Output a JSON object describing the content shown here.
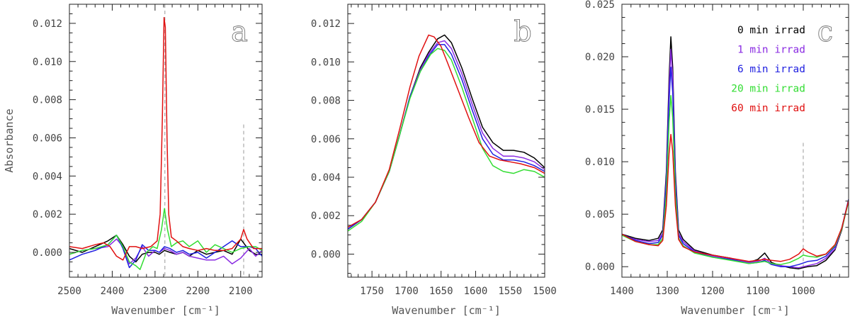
{
  "colors": {
    "0_min": "#000000",
    "1_min": "#8a2be2",
    "6_min": "#1f1fe0",
    "20_min": "#33dd33",
    "60_min": "#e01010"
  },
  "chart_data": [
    {
      "type": "line",
      "panel_letter": "a",
      "xlabel": "Wavenumber [cm⁻¹]",
      "ylabel": "Absorbance",
      "xlim": [
        2500,
        2050
      ],
      "ylim": [
        -0.0013,
        0.013
      ],
      "xticks": [
        2500,
        2400,
        2300,
        2200,
        2100
      ],
      "yticks": [
        0.0,
        0.002,
        0.004,
        0.006,
        0.008,
        0.01,
        0.012
      ],
      "ytick_labels": [
        "0.000",
        "0.002",
        "0.004",
        "0.006",
        "0.008",
        "0.010",
        "0.012"
      ],
      "vlines": [
        2277,
        2093
      ],
      "series": [
        {
          "color_key": "0_min",
          "x": [
            2500,
            2470,
            2440,
            2410,
            2390,
            2375,
            2360,
            2345,
            2330,
            2315,
            2300,
            2290,
            2278,
            2265,
            2250,
            2235,
            2220,
            2200,
            2180,
            2160,
            2140,
            2120,
            2100,
            2080,
            2065,
            2050
          ],
          "y": [
            0.0002,
            0.0,
            0.0003,
            0.0006,
            0.0009,
            0.0004,
            -0.0002,
            -0.0005,
            -0.0001,
            0.0,
            0.0,
            -0.0001,
            0.0001,
            0.0,
            -0.0001,
            0.0,
            -0.0002,
            0.0001,
            -0.0001,
            0.0,
            0.0001,
            -0.0001,
            0.0007,
            0.0001,
            -0.0001,
            -0.0001
          ]
        },
        {
          "color_key": "1_min",
          "x": [
            2500,
            2470,
            2440,
            2410,
            2390,
            2375,
            2360,
            2345,
            2330,
            2315,
            2300,
            2290,
            2278,
            2265,
            2250,
            2235,
            2220,
            2200,
            2180,
            2160,
            2140,
            2120,
            2100,
            2080,
            2065,
            2050
          ],
          "y": [
            -0.0001,
            0.0001,
            0.0002,
            0.0003,
            0.0007,
            0.0003,
            -0.0006,
            -0.0003,
            0.0003,
            -0.0002,
            0.0001,
            0.0,
            0.0002,
            0.0001,
            -0.0001,
            0.0,
            -0.0002,
            -0.0003,
            -0.0004,
            -0.0004,
            -0.0002,
            -0.0006,
            -0.0003,
            0.0002,
            -0.0002,
            0.0001
          ]
        },
        {
          "color_key": "6_min",
          "x": [
            2500,
            2470,
            2440,
            2410,
            2390,
            2375,
            2360,
            2345,
            2330,
            2315,
            2300,
            2290,
            2278,
            2265,
            2250,
            2235,
            2220,
            2200,
            2180,
            2160,
            2140,
            2120,
            2100,
            2080,
            2065,
            2050
          ],
          "y": [
            -0.0004,
            -0.0001,
            0.0001,
            0.0004,
            0.0009,
            0.0002,
            -0.0008,
            -0.0004,
            0.0004,
            0.0001,
            0.0001,
            0.0,
            0.0003,
            0.0002,
            0.0,
            0.0001,
            -0.0001,
            0.0,
            -0.0003,
            0.0,
            0.0003,
            0.0006,
            0.0003,
            0.0003,
            0.0002,
            -0.0002
          ]
        },
        {
          "color_key": "20_min",
          "x": [
            2500,
            2470,
            2440,
            2410,
            2390,
            2375,
            2360,
            2345,
            2335,
            2320,
            2305,
            2295,
            2285,
            2278,
            2271,
            2262,
            2250,
            2235,
            2220,
            2200,
            2180,
            2160,
            2140,
            2120,
            2100,
            2080,
            2065,
            2050
          ],
          "y": [
            -0.0001,
            0.0001,
            0.0002,
            0.0004,
            0.0009,
            0.0003,
            -0.0005,
            -0.0007,
            -0.0009,
            0.0,
            0.0003,
            0.0002,
            0.0012,
            0.0023,
            0.0012,
            0.0003,
            0.0005,
            0.0006,
            0.0003,
            0.0006,
            0.0,
            0.0004,
            0.0002,
            0.0,
            0.0002,
            0.0003,
            0.0003,
            0.0001
          ]
        },
        {
          "color_key": "60_min",
          "x": [
            2500,
            2470,
            2440,
            2420,
            2405,
            2390,
            2375,
            2360,
            2345,
            2330,
            2310,
            2295,
            2288,
            2283,
            2279,
            2276,
            2272,
            2268,
            2262,
            2250,
            2235,
            2220,
            2200,
            2180,
            2160,
            2140,
            2120,
            2100,
            2093,
            2085,
            2070,
            2050
          ],
          "y": [
            0.0003,
            0.0002,
            0.0004,
            0.0005,
            0.0003,
            -0.0002,
            -0.0004,
            0.0003,
            0.0003,
            0.0002,
            0.0003,
            0.0006,
            0.002,
            0.007,
            0.0123,
            0.0118,
            0.006,
            0.002,
            0.0008,
            0.0006,
            0.0003,
            0.0002,
            0.0001,
            0.0002,
            0.0001,
            0.0001,
            0.0002,
            0.0007,
            0.0012,
            0.0007,
            0.0002,
            0.0002
          ]
        }
      ]
    },
    {
      "type": "line",
      "panel_letter": "b",
      "xlabel": "Wavenumber [cm⁻¹]",
      "xlim": [
        1785,
        1500
      ],
      "ylim": [
        -0.0012,
        0.013
      ],
      "xticks": [
        1750,
        1700,
        1650,
        1600,
        1550,
        1500
      ],
      "yticks": [
        0.0,
        0.002,
        0.004,
        0.006,
        0.008,
        0.01,
        0.012
      ],
      "ytick_labels": [
        "0.000",
        "0.002",
        "0.004",
        "0.006",
        "0.008",
        "0.010",
        "0.012"
      ],
      "series": [
        {
          "color_key": "0_min",
          "x": [
            1785,
            1765,
            1745,
            1725,
            1710,
            1695,
            1680,
            1668,
            1655,
            1645,
            1635,
            1620,
            1605,
            1590,
            1575,
            1560,
            1545,
            1530,
            1515,
            1500
          ],
          "y": [
            0.0013,
            0.0018,
            0.0027,
            0.0043,
            0.0062,
            0.0082,
            0.0097,
            0.0105,
            0.0112,
            0.0114,
            0.011,
            0.0097,
            0.0081,
            0.0066,
            0.0058,
            0.0054,
            0.0054,
            0.0053,
            0.005,
            0.0045
          ]
        },
        {
          "color_key": "1_min",
          "x": [
            1785,
            1765,
            1745,
            1725,
            1710,
            1695,
            1680,
            1668,
            1655,
            1645,
            1635,
            1620,
            1605,
            1590,
            1575,
            1560,
            1545,
            1530,
            1515,
            1500
          ],
          "y": [
            0.0013,
            0.0018,
            0.0027,
            0.0043,
            0.0062,
            0.0082,
            0.0096,
            0.0104,
            0.011,
            0.0111,
            0.0107,
            0.0094,
            0.0078,
            0.0063,
            0.0055,
            0.0051,
            0.0051,
            0.005,
            0.0048,
            0.0044
          ]
        },
        {
          "color_key": "6_min",
          "x": [
            1785,
            1765,
            1745,
            1725,
            1710,
            1695,
            1680,
            1668,
            1655,
            1645,
            1635,
            1620,
            1605,
            1590,
            1575,
            1560,
            1545,
            1530,
            1515,
            1500
          ],
          "y": [
            0.0013,
            0.0018,
            0.0027,
            0.0043,
            0.0062,
            0.0082,
            0.0095,
            0.0103,
            0.0109,
            0.0109,
            0.0104,
            0.0091,
            0.0075,
            0.006,
            0.0052,
            0.0049,
            0.0049,
            0.0048,
            0.0046,
            0.0043
          ]
        },
        {
          "color_key": "20_min",
          "x": [
            1785,
            1765,
            1745,
            1725,
            1710,
            1695,
            1680,
            1665,
            1655,
            1645,
            1635,
            1620,
            1605,
            1590,
            1575,
            1560,
            1545,
            1530,
            1515,
            1500
          ],
          "y": [
            0.0012,
            0.0017,
            0.0027,
            0.0043,
            0.0062,
            0.0081,
            0.0095,
            0.0104,
            0.0107,
            0.0106,
            0.0101,
            0.0087,
            0.0071,
            0.0055,
            0.0046,
            0.0043,
            0.0042,
            0.0044,
            0.0043,
            0.004
          ]
        },
        {
          "color_key": "60_min",
          "x": [
            1785,
            1765,
            1745,
            1725,
            1710,
            1695,
            1682,
            1668,
            1660,
            1650,
            1640,
            1625,
            1610,
            1595,
            1580,
            1565,
            1550,
            1535,
            1515,
            1500
          ],
          "y": [
            0.0014,
            0.0018,
            0.0027,
            0.0044,
            0.0065,
            0.0087,
            0.0103,
            0.0114,
            0.0113,
            0.0108,
            0.0099,
            0.0085,
            0.0071,
            0.0058,
            0.0051,
            0.0049,
            0.0048,
            0.0047,
            0.0045,
            0.0042
          ]
        }
      ]
    },
    {
      "type": "line",
      "panel_letter": "c",
      "xlabel": "Wavenumber [cm⁻¹]",
      "xlim": [
        1400,
        900
      ],
      "ylim": [
        -0.001,
        0.025
      ],
      "xticks": [
        1400,
        1300,
        1200,
        1100,
        1000
      ],
      "yticks": [
        0.0,
        0.005,
        0.01,
        0.015,
        0.02,
        0.025
      ],
      "ytick_labels": [
        "0.000",
        "0.005",
        "0.010",
        "0.015",
        "0.020",
        "0.025"
      ],
      "vlines": [
        1000
      ],
      "legend": {
        "placement": "top-right",
        "entries": [
          {
            "label": "0 min irrad",
            "color_key": "0_min"
          },
          {
            "label": "1 min irrad",
            "color_key": "1_min"
          },
          {
            "label": "6 min irrad",
            "color_key": "6_min"
          },
          {
            "label": "20 min irrad",
            "color_key": "20_min"
          },
          {
            "label": "60 min irrad",
            "color_key": "60_min"
          }
        ]
      },
      "series": [
        {
          "color_key": "0_min",
          "x": [
            1400,
            1370,
            1340,
            1320,
            1310,
            1302,
            1296,
            1292,
            1288,
            1282,
            1275,
            1265,
            1240,
            1200,
            1160,
            1120,
            1100,
            1085,
            1070,
            1050,
            1030,
            1010,
            990,
            970,
            950,
            930,
            915,
            900
          ],
          "y": [
            0.0031,
            0.0027,
            0.0025,
            0.0027,
            0.0035,
            0.009,
            0.018,
            0.0219,
            0.019,
            0.009,
            0.0035,
            0.0026,
            0.0016,
            0.0011,
            0.0008,
            0.0004,
            0.0007,
            0.0013,
            0.0004,
            0.0001,
            -0.0001,
            -0.0002,
            0.0,
            0.0001,
            0.0006,
            0.0016,
            0.0035,
            0.0064
          ]
        },
        {
          "color_key": "1_min",
          "x": [
            1400,
            1370,
            1340,
            1320,
            1310,
            1302,
            1296,
            1292,
            1288,
            1282,
            1275,
            1265,
            1240,
            1200,
            1160,
            1120,
            1100,
            1085,
            1070,
            1050,
            1030,
            1010,
            990,
            970,
            950,
            930,
            915,
            900
          ],
          "y": [
            0.003,
            0.0026,
            0.0024,
            0.0025,
            0.0032,
            0.0085,
            0.017,
            0.0207,
            0.018,
            0.0085,
            0.0032,
            0.0024,
            0.0015,
            0.001,
            0.0008,
            0.0004,
            0.0005,
            0.0008,
            0.0003,
            0.0001,
            0.0,
            -0.0001,
            0.0001,
            0.0003,
            0.0008,
            0.0017,
            0.0036,
            0.0063
          ]
        },
        {
          "color_key": "6_min",
          "x": [
            1400,
            1370,
            1340,
            1320,
            1310,
            1302,
            1296,
            1292,
            1288,
            1282,
            1275,
            1265,
            1240,
            1200,
            1160,
            1120,
            1100,
            1085,
            1070,
            1050,
            1030,
            1010,
            990,
            970,
            950,
            930,
            915,
            900
          ],
          "y": [
            0.0031,
            0.0025,
            0.0022,
            0.0023,
            0.003,
            0.008,
            0.0158,
            0.019,
            0.0166,
            0.008,
            0.003,
            0.0022,
            0.0014,
            0.0009,
            0.0007,
            0.0003,
            0.0004,
            0.0006,
            0.0002,
            0.0,
            0.0,
            0.0002,
            0.0005,
            0.0006,
            0.001,
            0.0019,
            0.0037,
            0.0064
          ]
        },
        {
          "color_key": "20_min",
          "x": [
            1400,
            1370,
            1340,
            1320,
            1310,
            1302,
            1296,
            1292,
            1288,
            1282,
            1275,
            1265,
            1240,
            1200,
            1160,
            1120,
            1100,
            1085,
            1070,
            1050,
            1030,
            1010,
            1000,
            990,
            970,
            950,
            930,
            915,
            900
          ],
          "y": [
            0.003,
            0.0024,
            0.0021,
            0.0021,
            0.0027,
            0.007,
            0.0138,
            0.0163,
            0.0142,
            0.007,
            0.0027,
            0.002,
            0.0013,
            0.0009,
            0.0006,
            0.0003,
            0.0004,
            0.0005,
            0.0003,
            0.0002,
            0.0004,
            0.0008,
            0.0011,
            0.001,
            0.0009,
            0.0012,
            0.002,
            0.0036,
            0.0062
          ]
        },
        {
          "color_key": "60_min",
          "x": [
            1400,
            1370,
            1340,
            1320,
            1310,
            1302,
            1296,
            1292,
            1288,
            1282,
            1275,
            1265,
            1240,
            1200,
            1160,
            1120,
            1100,
            1085,
            1070,
            1050,
            1030,
            1010,
            1000,
            990,
            970,
            950,
            930,
            915,
            900
          ],
          "y": [
            0.0031,
            0.0024,
            0.0021,
            0.002,
            0.0025,
            0.0058,
            0.0108,
            0.0126,
            0.011,
            0.0058,
            0.0026,
            0.0019,
            0.0014,
            0.0011,
            0.0008,
            0.0005,
            0.0006,
            0.0007,
            0.0006,
            0.0005,
            0.0007,
            0.0012,
            0.0017,
            0.0014,
            0.001,
            0.0012,
            0.0021,
            0.0037,
            0.0063
          ]
        }
      ]
    }
  ]
}
